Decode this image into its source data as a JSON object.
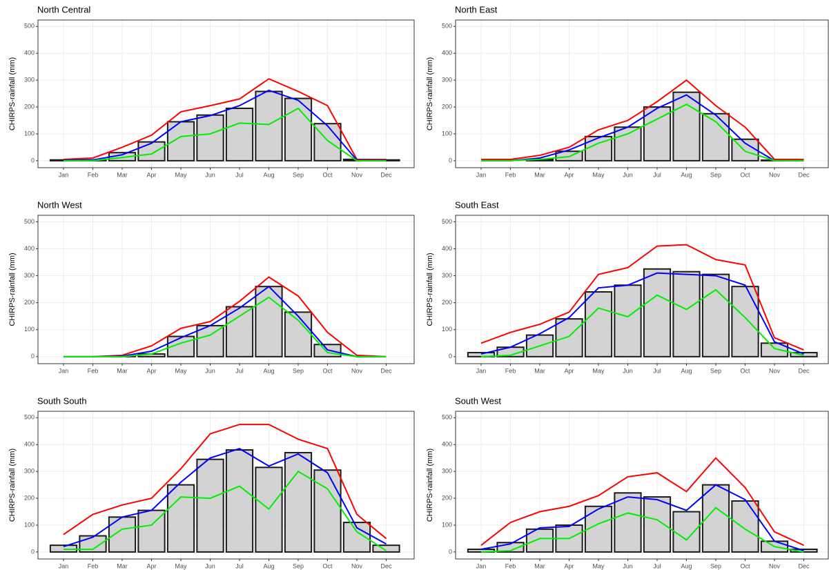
{
  "chart_data": [
    {
      "type": "combo",
      "title": "North Central",
      "y_label": "CHIRPS-rainfall (mm)",
      "categories": [
        "Jan",
        "Feb",
        "Mar",
        "Apr",
        "May",
        "Jun",
        "Jul",
        "Aug",
        "Sep",
        "Oct",
        "Nov",
        "Dec"
      ],
      "values": [
        3,
        3,
        30,
        70,
        145,
        170,
        195,
        258,
        232,
        138,
        5,
        3
      ],
      "bar_color": "#d3d3d3",
      "series": [
        {
          "color": "#ff0000",
          "values": [
            5,
            10,
            50,
            95,
            182,
            205,
            230,
            305,
            258,
            205,
            5,
            5
          ]
        },
        {
          "color": "#0000ff",
          "values": [
            2,
            3,
            22,
            65,
            145,
            168,
            205,
            262,
            225,
            130,
            2,
            2
          ]
        },
        {
          "color": "#00ee00",
          "values": [
            0,
            0,
            12,
            25,
            90,
            100,
            140,
            135,
            195,
            75,
            0,
            0
          ]
        }
      ],
      "ylim": [
        -26,
        524
      ],
      "yticks": [
        0,
        100,
        200,
        300,
        400,
        500
      ],
      "grid": true
    },
    {
      "type": "combo",
      "title": "North East",
      "y_label": "CHIRPS-rainfall (mm)",
      "categories": [
        "Jan",
        "Feb",
        "Mar",
        "Apr",
        "May",
        "Jun",
        "Jul",
        "Aug",
        "Sep",
        "Oct",
        "Nov",
        "Dec"
      ],
      "values": [
        0,
        0,
        5,
        35,
        90,
        125,
        200,
        255,
        175,
        80,
        2,
        0
      ],
      "bar_color": "#d3d3d3",
      "series": [
        {
          "color": "#ff0000",
          "values": [
            5,
            5,
            20,
            50,
            115,
            150,
            220,
            300,
            205,
            125,
            5,
            5
          ]
        },
        {
          "color": "#0000ff",
          "values": [
            0,
            0,
            10,
            40,
            85,
            125,
            195,
            245,
            170,
            65,
            0,
            0
          ]
        },
        {
          "color": "#00ee00",
          "values": [
            0,
            0,
            5,
            15,
            65,
            100,
            155,
            210,
            145,
            35,
            0,
            0
          ]
        }
      ],
      "ylim": [
        -26,
        524
      ],
      "yticks": [
        0,
        100,
        200,
        300,
        400,
        500
      ],
      "grid": true
    },
    {
      "type": "combo",
      "title": "North West",
      "y_label": "CHIRPS-rainfall (mm)",
      "categories": [
        "Jan",
        "Feb",
        "Mar",
        "Apr",
        "May",
        "Jun",
        "Jul",
        "Aug",
        "Sep",
        "Oct",
        "Nov",
        "Dec"
      ],
      "values": [
        0,
        0,
        2,
        10,
        75,
        115,
        185,
        260,
        165,
        45,
        0,
        0
      ],
      "bar_color": "#d3d3d3",
      "series": [
        {
          "color": "#ff0000",
          "values": [
            0,
            0,
            5,
            40,
            105,
            130,
            205,
            295,
            225,
            90,
            5,
            0
          ]
        },
        {
          "color": "#0000ff",
          "values": [
            0,
            0,
            2,
            20,
            70,
            115,
            180,
            260,
            150,
            25,
            0,
            0
          ]
        },
        {
          "color": "#00ee00",
          "values": [
            0,
            0,
            0,
            10,
            50,
            80,
            150,
            220,
            135,
            15,
            0,
            0
          ]
        }
      ],
      "ylim": [
        -26,
        524
      ],
      "yticks": [
        0,
        100,
        200,
        300,
        400,
        500
      ],
      "grid": true
    },
    {
      "type": "combo",
      "title": "South East",
      "y_label": "CHIRPS-rainfall (mm)",
      "categories": [
        "Jan",
        "Feb",
        "Mar",
        "Apr",
        "May",
        "Jun",
        "Jul",
        "Aug",
        "Sep",
        "Oct",
        "Nov",
        "Dec"
      ],
      "values": [
        15,
        35,
        80,
        140,
        240,
        265,
        325,
        315,
        305,
        260,
        50,
        15
      ],
      "bar_color": "#d3d3d3",
      "series": [
        {
          "color": "#ff0000",
          "values": [
            50,
            90,
            120,
            165,
            305,
            330,
            410,
            415,
            360,
            340,
            70,
            25
          ]
        },
        {
          "color": "#0000ff",
          "values": [
            10,
            35,
            85,
            145,
            255,
            265,
            310,
            305,
            300,
            265,
            55,
            10
          ]
        },
        {
          "color": "#00ee00",
          "values": [
            0,
            5,
            40,
            75,
            180,
            148,
            228,
            175,
            248,
            145,
            30,
            5
          ]
        }
      ],
      "ylim": [
        -26,
        524
      ],
      "yticks": [
        0,
        100,
        200,
        300,
        400,
        500
      ],
      "grid": true
    },
    {
      "type": "combo",
      "title": "South South",
      "y_label": "CHIRPS-rainfall (mm)",
      "categories": [
        "Jan",
        "Feb",
        "Mar",
        "Apr",
        "May",
        "Jun",
        "Jul",
        "Aug",
        "Sep",
        "Oct",
        "Nov",
        "Dec"
      ],
      "values": [
        25,
        60,
        130,
        155,
        250,
        345,
        380,
        315,
        370,
        305,
        110,
        25
      ],
      "bar_color": "#d3d3d3",
      "series": [
        {
          "color": "#ff0000",
          "values": [
            65,
            140,
            175,
            200,
            310,
            440,
            475,
            475,
            420,
            385,
            140,
            50
          ]
        },
        {
          "color": "#0000ff",
          "values": [
            20,
            55,
            130,
            155,
            260,
            350,
            385,
            320,
            365,
            295,
            90,
            30
          ]
        },
        {
          "color": "#00ee00",
          "values": [
            10,
            10,
            85,
            100,
            205,
            200,
            245,
            160,
            300,
            235,
            75,
            5
          ]
        }
      ],
      "ylim": [
        -26,
        524
      ],
      "yticks": [
        0,
        100,
        200,
        300,
        400,
        500
      ],
      "grid": true
    },
    {
      "type": "combo",
      "title": "South West",
      "y_label": "CHIRPS-rainfall (mm)",
      "categories": [
        "Jan",
        "Feb",
        "Mar",
        "Apr",
        "May",
        "Jun",
        "Jul",
        "Aug",
        "Sep",
        "Oct",
        "Nov",
        "Dec"
      ],
      "values": [
        10,
        35,
        85,
        100,
        170,
        220,
        205,
        150,
        250,
        190,
        40,
        10
      ],
      "bar_color": "#d3d3d3",
      "series": [
        {
          "color": "#ff0000",
          "values": [
            25,
            110,
            150,
            170,
            210,
            280,
            295,
            225,
            350,
            240,
            75,
            25
          ]
        },
        {
          "color": "#0000ff",
          "values": [
            10,
            30,
            90,
            95,
            160,
            205,
            195,
            155,
            250,
            195,
            40,
            5
          ]
        },
        {
          "color": "#00ee00",
          "values": [
            0,
            5,
            50,
            50,
            105,
            145,
            120,
            45,
            165,
            85,
            20,
            0
          ]
        }
      ],
      "ylim": [
        -26,
        524
      ],
      "yticks": [
        0,
        100,
        200,
        300,
        400,
        500
      ],
      "grid": true
    }
  ]
}
